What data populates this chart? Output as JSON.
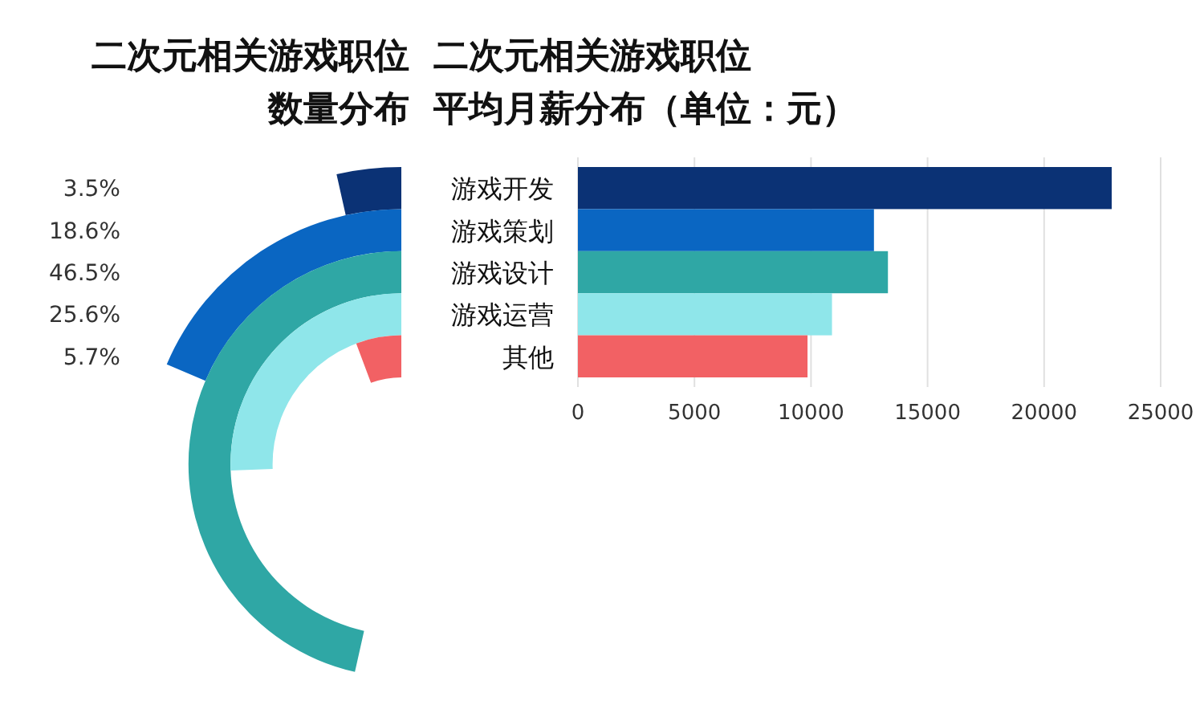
{
  "chart_data": [
    {
      "type": "other",
      "title": "二次元相关游戏职位",
      "subtitle": "数量分布",
      "categories": [
        null,
        null,
        null,
        null,
        null
      ],
      "values": [
        3.5,
        18.6,
        46.5,
        25.6,
        5.7
      ],
      "value_labels": [
        "3.5%",
        "18.6%",
        "46.5%",
        "25.6%",
        "5.7%"
      ],
      "colors": [
        "#0b3275",
        "#0a66c2",
        "#2fa7a5",
        "#8fe6ea",
        "#f26164"
      ]
    },
    {
      "type": "bar",
      "orientation": "horizontal",
      "title": "二次元相关游戏职位",
      "subtitle": "平均月薪分布（单位：元）",
      "categories": [
        "游戏开发",
        "游戏策划",
        "游戏设计",
        "游戏运营",
        "其他"
      ],
      "values": [
        22900,
        12700,
        13300,
        10900,
        9850
      ],
      "colors": [
        "#0b3275",
        "#0a66c2",
        "#2fa7a5",
        "#8fe6ea",
        "#f26164"
      ],
      "xlim": [
        0,
        25000
      ],
      "xticks": [
        0,
        5000,
        10000,
        15000,
        20000,
        25000
      ],
      "grid": "x"
    }
  ]
}
